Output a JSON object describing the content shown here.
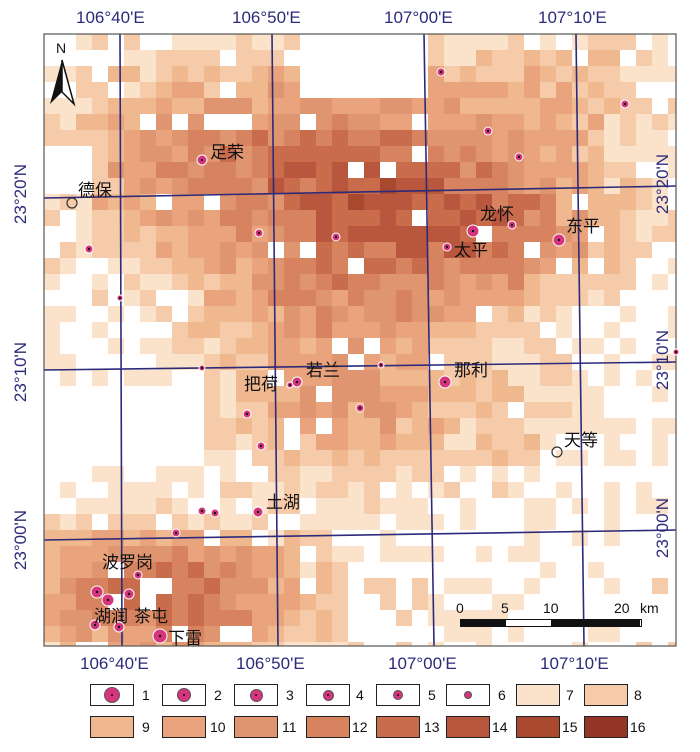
{
  "north_arrow": {
    "label": "N"
  },
  "coords": {
    "top": [
      "106°40'E",
      "106°50'E",
      "107°00'E",
      "107°10'E"
    ],
    "bottom": [
      "106°40'E",
      "106°50'E",
      "107°00'E",
      "107°10'E"
    ],
    "left": [
      "23°20'N",
      "23°10'N",
      "23°00'N"
    ],
    "right": [
      "23°20'N",
      "23°10'N",
      "23°00'N"
    ]
  },
  "places": [
    {
      "id": "zurong",
      "name": "足荣"
    },
    {
      "id": "debao",
      "name": "德保"
    },
    {
      "id": "longhuai",
      "name": "龙怀"
    },
    {
      "id": "dongping",
      "name": "东平"
    },
    {
      "id": "taiping",
      "name": "太平"
    },
    {
      "id": "ruolan",
      "name": "若兰"
    },
    {
      "id": "bahe",
      "name": "把荷"
    },
    {
      "id": "nali",
      "name": "那利"
    },
    {
      "id": "tiandeng",
      "name": "天等"
    },
    {
      "id": "tuhu",
      "name": "土湖"
    },
    {
      "id": "boluogang",
      "name": "波罗岗"
    },
    {
      "id": "hurun",
      "name": "湖润"
    },
    {
      "id": "chatun",
      "name": "茶屯"
    },
    {
      "id": "xialei",
      "name": "下雷"
    }
  ],
  "scale_bar": {
    "ticks": [
      "0",
      "5",
      "10",
      "20"
    ],
    "unit": "km"
  },
  "legend": {
    "symbols": [
      "1",
      "2",
      "3",
      "4",
      "5",
      "6"
    ],
    "classes": [
      {
        "label": "7",
        "color": "#fbe3cb"
      },
      {
        "label": "8",
        "color": "#f5cba9"
      },
      {
        "label": "9",
        "color": "#f0b88f"
      },
      {
        "label": "10",
        "color": "#e9a47d"
      },
      {
        "label": "11",
        "color": "#df9570"
      },
      {
        "label": "12",
        "color": "#d78360"
      },
      {
        "label": "13",
        "color": "#c86c4c"
      },
      {
        "label": "14",
        "color": "#b8573d"
      },
      {
        "label": "15",
        "color": "#a8482f"
      },
      {
        "label": "16",
        "color": "#943527"
      }
    ]
  },
  "colors": {
    "grid_line": "#2d2a7a",
    "symbol_fill": "#d4357d",
    "frame": "#555555"
  }
}
